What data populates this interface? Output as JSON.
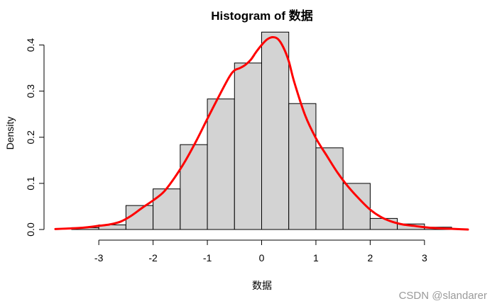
{
  "chart_data": {
    "type": "bar",
    "title": "Histogram of 数据",
    "xlabel": "数据",
    "ylabel": "Density",
    "bin_edges": [
      -3.5,
      -3.0,
      -2.5,
      -2.0,
      -1.5,
      -1.0,
      -0.5,
      0.0,
      0.5,
      1.0,
      1.5,
      2.0,
      2.5,
      3.0,
      3.5
    ],
    "values": [
      0.004,
      0.01,
      0.052,
      0.088,
      0.184,
      0.283,
      0.361,
      0.428,
      0.273,
      0.177,
      0.1,
      0.024,
      0.012,
      0.005
    ],
    "xlim": [
      -3.8,
      3.8
    ],
    "ylim": [
      0,
      0.43
    ],
    "x_ticks": [
      -3,
      -2,
      -1,
      0,
      1,
      2,
      3
    ],
    "x_tick_labels": [
      "-3",
      "-2",
      "-1",
      "0",
      "1",
      "2",
      "3"
    ],
    "y_ticks": [
      0.0,
      0.1,
      0.2,
      0.3,
      0.4
    ],
    "y_tick_labels": [
      "0.0",
      "0.1",
      "0.2",
      "0.3",
      "0.4"
    ],
    "grid": false,
    "bar_color": "#d3d3d3",
    "bar_edge_color": "#000000",
    "density_curve": {
      "color": "#ff0000",
      "x": [
        -3.8,
        -3.6,
        -3.4,
        -3.2,
        -3.0,
        -2.8,
        -2.6,
        -2.4,
        -2.2,
        -2.0,
        -1.8,
        -1.6,
        -1.4,
        -1.2,
        -1.0,
        -0.8,
        -0.6,
        -0.5,
        -0.4,
        -0.3,
        -0.2,
        -0.1,
        0.0,
        0.1,
        0.2,
        0.3,
        0.4,
        0.5,
        0.6,
        0.8,
        1.0,
        1.2,
        1.4,
        1.6,
        1.8,
        2.0,
        2.2,
        2.4,
        2.6,
        2.8,
        3.0,
        3.2,
        3.4,
        3.6,
        3.8
      ],
      "y": [
        0.001,
        0.002,
        0.003,
        0.005,
        0.008,
        0.011,
        0.017,
        0.03,
        0.047,
        0.063,
        0.082,
        0.113,
        0.15,
        0.193,
        0.24,
        0.286,
        0.33,
        0.345,
        0.35,
        0.357,
        0.368,
        0.385,
        0.4,
        0.412,
        0.417,
        0.413,
        0.395,
        0.365,
        0.32,
        0.248,
        0.198,
        0.16,
        0.123,
        0.092,
        0.066,
        0.043,
        0.027,
        0.017,
        0.011,
        0.008,
        0.005,
        0.003,
        0.002,
        0.001,
        0.0
      ]
    }
  },
  "watermark": "CSDN @slandarer"
}
